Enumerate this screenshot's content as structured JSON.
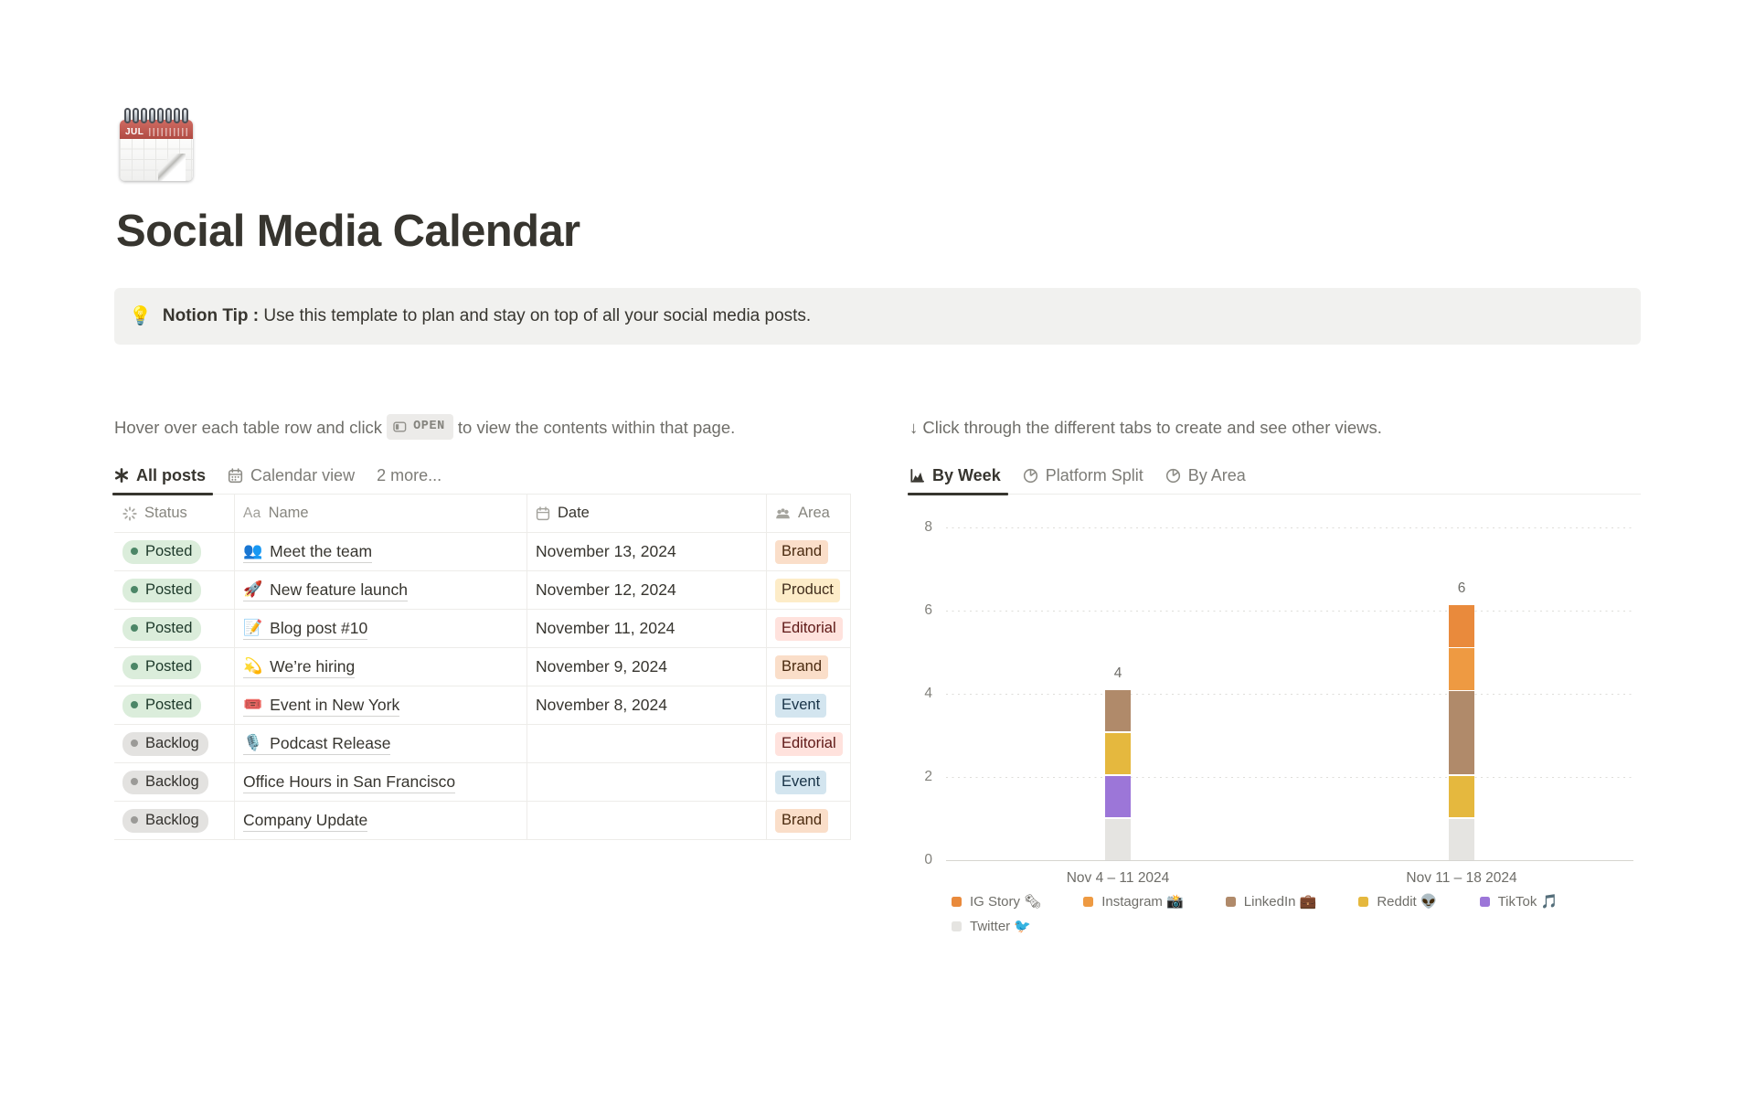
{
  "page": {
    "icon": "spiral-calendar-emoji",
    "icon_month": "JUL",
    "title": "Social Media Calendar",
    "callout": {
      "icon": "💡",
      "bold": "Notion Tip :",
      "text": " Use this template to plan and stay on top of all your social media posts."
    }
  },
  "left": {
    "instruction_pre": "Hover over each table row and click",
    "open_label": "OPEN",
    "instruction_post": "to view the contents within that page.",
    "tabs": [
      {
        "label": "All posts",
        "icon": "asterisk-icon",
        "active": true
      },
      {
        "label": "Calendar view",
        "icon": "calendar-icon",
        "active": false
      },
      {
        "label": "2 more...",
        "active": false
      }
    ],
    "table": {
      "columns": [
        {
          "icon": "status-spinner-icon",
          "label": "Status"
        },
        {
          "icon": "aa-icon",
          "label": "Name"
        },
        {
          "icon": "calendar-icon",
          "label": "Date"
        },
        {
          "icon": "people-icon",
          "label": "Area"
        }
      ],
      "rows": [
        {
          "status": "Posted",
          "emoji": "👥",
          "name": "Meet the team",
          "date": "November 13, 2024",
          "area": "Brand"
        },
        {
          "status": "Posted",
          "emoji": "🚀",
          "name": "New feature launch",
          "date": "November 12, 2024",
          "area": "Product"
        },
        {
          "status": "Posted",
          "emoji": "📝",
          "name": "Blog post #10",
          "date": "November 11, 2024",
          "area": "Editorial"
        },
        {
          "status": "Posted",
          "emoji": "💫",
          "name": "We’re hiring",
          "date": "November 9, 2024",
          "area": "Brand"
        },
        {
          "status": "Posted",
          "emoji": "🎟️",
          "name": "Event in New York",
          "date": "November 8, 2024",
          "area": "Event"
        },
        {
          "status": "Backlog",
          "emoji": "🎙️",
          "name": "Podcast Release",
          "date": "",
          "area": "Editorial"
        },
        {
          "status": "Backlog",
          "emoji": "",
          "name": "Office Hours in San Francisco",
          "date": "",
          "area": "Event"
        },
        {
          "status": "Backlog",
          "emoji": "",
          "name": "Company Update",
          "date": "",
          "area": "Brand"
        }
      ]
    }
  },
  "status_styles": {
    "Posted": {
      "bg": "#DBEDDB",
      "dot": "#4C8667",
      "text": "#1C3829"
    },
    "Backlog": {
      "bg": "#E3E2E0",
      "dot": "#9B9A97",
      "text": "#32302C"
    }
  },
  "area_styles": {
    "Brand": {
      "bg": "#FADEC9",
      "text": "#49290E"
    },
    "Product": {
      "bg": "#FDECC8",
      "text": "#402C1B"
    },
    "Editorial": {
      "bg": "#FFE2DD",
      "text": "#5D1715"
    },
    "Event": {
      "bg": "#D3E5EF",
      "text": "#183347"
    }
  },
  "right": {
    "instruction": "↓ Click through the different tabs to create and see other views.",
    "tabs": [
      {
        "label": "By Week",
        "icon": "bar-chart-icon",
        "active": true
      },
      {
        "label": "Platform Split",
        "icon": "pie-chart-icon",
        "active": false
      },
      {
        "label": "By Area",
        "icon": "pie-chart-icon",
        "active": false
      }
    ]
  },
  "chart_data": {
    "type": "bar",
    "stacked": true,
    "categories": [
      "Nov 4 – 11 2024",
      "Nov 11 – 18 2024"
    ],
    "series": [
      {
        "name": "IG Story 🗞",
        "color": "#E98A3C",
        "values": [
          0,
          1
        ]
      },
      {
        "name": "Instagram 📸",
        "color": "#EE9A42",
        "values": [
          0,
          1
        ]
      },
      {
        "name": "LinkedIn 💼",
        "color": "#B08A6A",
        "values": [
          1,
          2
        ]
      },
      {
        "name": "Reddit 👽",
        "color": "#E5B83E",
        "values": [
          1,
          1
        ]
      },
      {
        "name": "TikTok 🎵",
        "color": "#9C76D8",
        "values": [
          1,
          0
        ]
      },
      {
        "name": "Twitter 🐦",
        "color": "#E5E4E1",
        "values": [
          1,
          1
        ]
      }
    ],
    "totals": [
      4,
      6
    ],
    "yticks": [
      0,
      2,
      4,
      6,
      8
    ],
    "ylim": [
      0,
      8
    ],
    "grid": "dotted-horizontal",
    "legend_position": "bottom"
  }
}
